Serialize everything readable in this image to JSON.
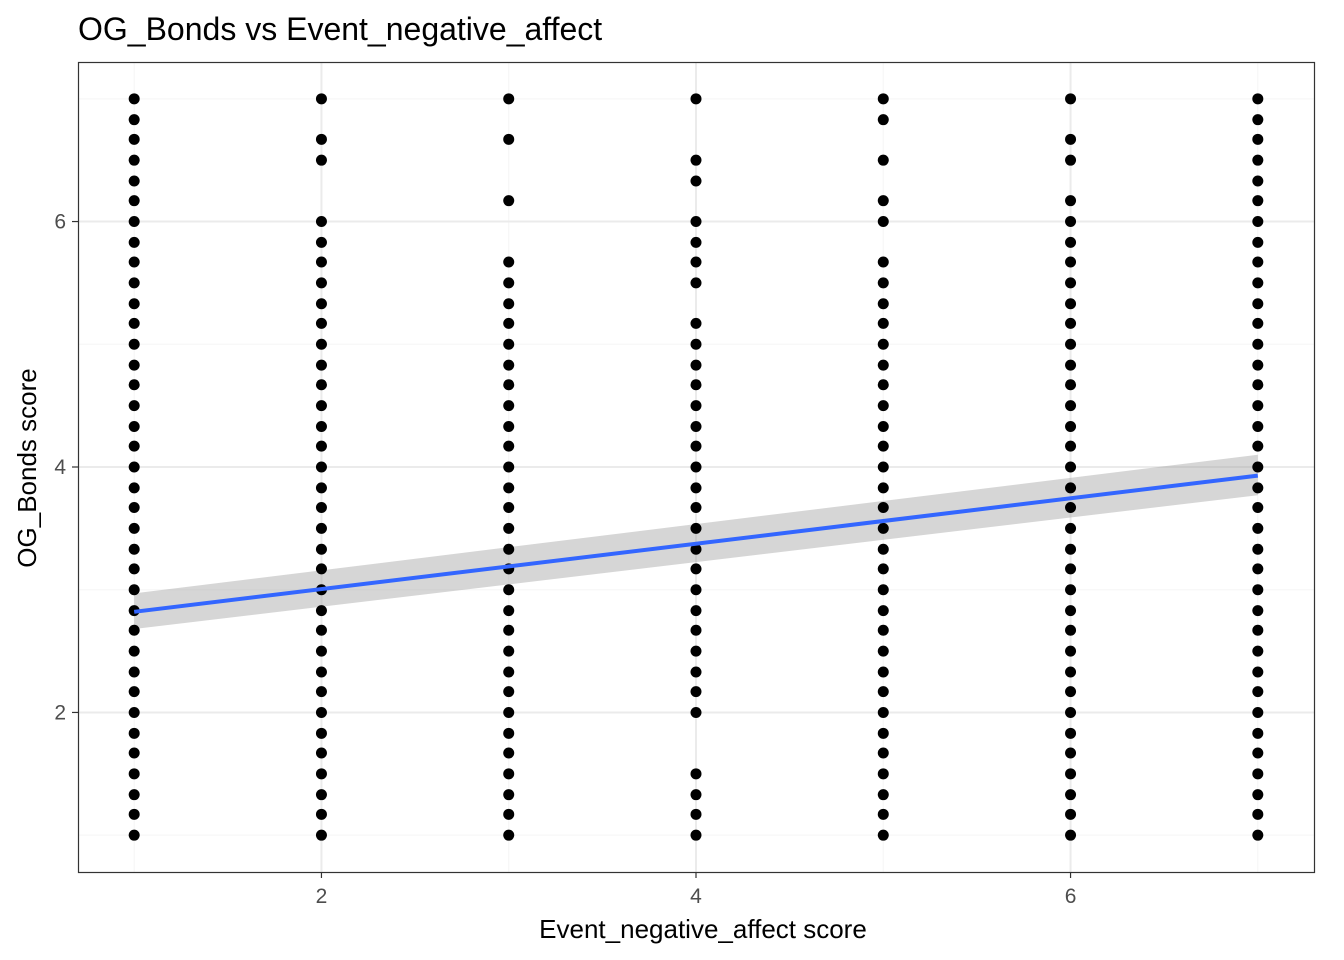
{
  "chart_data": {
    "type": "scatter",
    "title": "OG_Bonds vs Event_negative_affect",
    "xlabel": "Event_negative_affect score",
    "ylabel": "OG_Bonds score",
    "xlim": [
      0.7,
      7.3
    ],
    "ylim": [
      0.7,
      7.3
    ],
    "x_ticks": [
      2,
      4,
      6
    ],
    "y_ticks": [
      2,
      4,
      6
    ],
    "grid": true,
    "colors": {
      "points": "#000000",
      "fit_line": "#3366FF",
      "confidence_band": "#999999",
      "major_grid": "#EBEBEB",
      "minor_grid": "#F5F5F5",
      "panel_border": "#333333"
    },
    "series": [
      {
        "name": "Event_negative_affect = 1",
        "x": 1,
        "y_values": [
          1.0,
          1.17,
          1.33,
          1.5,
          1.67,
          1.83,
          2.0,
          2.17,
          2.33,
          2.5,
          2.67,
          2.83,
          3.0,
          3.17,
          3.33,
          3.5,
          3.67,
          3.83,
          4.0,
          4.17,
          4.33,
          4.5,
          4.67,
          4.83,
          5.0,
          5.17,
          5.33,
          5.5,
          5.67,
          5.83,
          6.0,
          6.17,
          6.33,
          6.5,
          6.67,
          6.83,
          7.0
        ]
      },
      {
        "name": "Event_negative_affect = 2",
        "x": 2,
        "y_values": [
          1.0,
          1.17,
          1.33,
          1.5,
          1.67,
          1.83,
          2.0,
          2.17,
          2.33,
          2.5,
          2.67,
          2.83,
          3.0,
          3.17,
          3.33,
          3.5,
          3.67,
          3.83,
          4.0,
          4.17,
          4.33,
          4.5,
          4.67,
          4.83,
          5.0,
          5.17,
          5.33,
          5.5,
          5.67,
          5.83,
          6.0,
          6.5,
          6.67,
          7.0
        ]
      },
      {
        "name": "Event_negative_affect = 3",
        "x": 3,
        "y_values": [
          1.0,
          1.17,
          1.33,
          1.5,
          1.67,
          1.83,
          2.0,
          2.17,
          2.33,
          2.5,
          2.67,
          2.83,
          3.0,
          3.17,
          3.33,
          3.5,
          3.67,
          3.83,
          4.0,
          4.17,
          4.33,
          4.5,
          4.67,
          4.83,
          5.0,
          5.17,
          5.33,
          5.5,
          5.67,
          6.17,
          6.67,
          7.0
        ]
      },
      {
        "name": "Event_negative_affect = 4",
        "x": 4,
        "y_values": [
          1.0,
          1.17,
          1.33,
          1.5,
          2.0,
          2.17,
          2.33,
          2.5,
          2.67,
          2.83,
          3.0,
          3.17,
          3.33,
          3.5,
          3.67,
          3.83,
          4.0,
          4.17,
          4.33,
          4.5,
          4.67,
          4.83,
          5.0,
          5.17,
          5.5,
          5.67,
          5.83,
          6.0,
          6.33,
          6.5,
          7.0
        ]
      },
      {
        "name": "Event_negative_affect = 5",
        "x": 5,
        "y_values": [
          1.0,
          1.17,
          1.33,
          1.5,
          1.67,
          1.83,
          2.0,
          2.17,
          2.33,
          2.5,
          2.67,
          2.83,
          3.0,
          3.17,
          3.33,
          3.5,
          3.67,
          3.83,
          4.0,
          4.17,
          4.33,
          4.5,
          4.67,
          4.83,
          5.0,
          5.17,
          5.33,
          5.5,
          5.67,
          6.0,
          6.17,
          6.5,
          6.83,
          7.0
        ]
      },
      {
        "name": "Event_negative_affect = 6",
        "x": 6,
        "y_values": [
          1.0,
          1.17,
          1.33,
          1.5,
          1.67,
          1.83,
          2.0,
          2.17,
          2.33,
          2.5,
          2.67,
          2.83,
          3.0,
          3.17,
          3.33,
          3.5,
          3.67,
          3.83,
          4.0,
          4.17,
          4.33,
          4.5,
          4.67,
          4.83,
          5.0,
          5.17,
          5.33,
          5.5,
          5.67,
          5.83,
          6.0,
          6.17,
          6.5,
          6.67,
          7.0
        ]
      },
      {
        "name": "Event_negative_affect = 7",
        "x": 7,
        "y_values": [
          1.0,
          1.17,
          1.33,
          1.5,
          1.67,
          1.83,
          2.0,
          2.17,
          2.33,
          2.5,
          2.67,
          2.83,
          3.0,
          3.17,
          3.33,
          3.5,
          3.67,
          3.83,
          4.0,
          4.17,
          4.33,
          4.5,
          4.67,
          4.83,
          5.0,
          5.17,
          5.33,
          5.5,
          5.67,
          5.83,
          6.0,
          6.17,
          6.33,
          6.5,
          6.67,
          6.83,
          7.0
        ]
      }
    ],
    "fit_line": {
      "method": "linear regression",
      "x": [
        1,
        7
      ],
      "y": [
        2.82,
        3.93
      ],
      "ci_lower": [
        2.68,
        3.77
      ],
      "ci_upper": [
        2.97,
        4.1
      ]
    }
  }
}
